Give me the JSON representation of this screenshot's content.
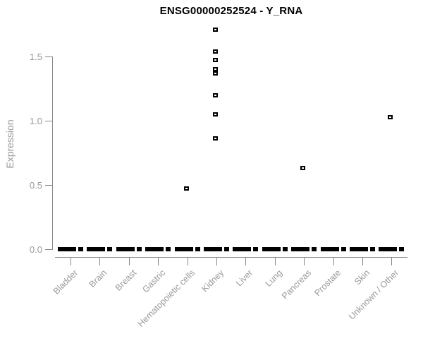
{
  "title": "ENSG00000252524 - Y_RNA",
  "axes": {
    "ylabel": "Expression",
    "ytick_labels": [
      "0.0",
      "0.5",
      "1.0",
      "1.5"
    ]
  },
  "colors": {
    "axis_line": "#888888",
    "muted_text": "#999999",
    "data_black": "#000000",
    "background": "#ffffff"
  },
  "chart_data": {
    "type": "boxplot",
    "title": "ENSG00000252524 - Y_RNA",
    "xlabel": "",
    "ylabel": "Expression",
    "ylim": [
      0,
      1.72
    ],
    "yticks": [
      0.0,
      0.5,
      1.0,
      1.5
    ],
    "grid": false,
    "legend": null,
    "categories": [
      "Bladder",
      "Brain",
      "Breast",
      "Gastric",
      "Hematopoietic cells",
      "Kidney",
      "Liver",
      "Lung",
      "Pancreas",
      "Prostate",
      "Skin",
      "Unknown / Other"
    ],
    "boxes": [
      {
        "median": 0,
        "q1": 0,
        "q3": 0,
        "whisker_low": 0,
        "whisker_high": 0
      },
      {
        "median": 0,
        "q1": 0,
        "q3": 0,
        "whisker_low": 0,
        "whisker_high": 0
      },
      {
        "median": 0,
        "q1": 0,
        "q3": 0,
        "whisker_low": 0,
        "whisker_high": 0
      },
      {
        "median": 0,
        "q1": 0,
        "q3": 0,
        "whisker_low": 0,
        "whisker_high": 0
      },
      {
        "median": 0,
        "q1": 0,
        "q3": 0,
        "whisker_low": 0,
        "whisker_high": 0
      },
      {
        "median": 0,
        "q1": 0,
        "q3": 0,
        "whisker_low": 0,
        "whisker_high": 0
      },
      {
        "median": 0,
        "q1": 0,
        "q3": 0,
        "whisker_low": 0,
        "whisker_high": 0
      },
      {
        "median": 0,
        "q1": 0,
        "q3": 0,
        "whisker_low": 0,
        "whisker_high": 0
      },
      {
        "median": 0,
        "q1": 0,
        "q3": 0,
        "whisker_low": 0,
        "whisker_high": 0
      },
      {
        "median": 0,
        "q1": 0,
        "q3": 0,
        "whisker_low": 0,
        "whisker_high": 0
      },
      {
        "median": 0,
        "q1": 0,
        "q3": 0,
        "whisker_low": 0,
        "whisker_high": 0
      },
      {
        "median": 0,
        "q1": 0,
        "q3": 0,
        "whisker_low": 0,
        "whisker_high": 0
      }
    ],
    "outliers": [
      [],
      [],
      [],
      [],
      [
        0.47
      ],
      [
        1.71,
        1.54,
        1.47,
        1.4,
        1.37,
        1.2,
        1.05,
        0.86
      ],
      [],
      [],
      [
        0.63
      ],
      [],
      [],
      [
        1.03
      ]
    ]
  }
}
